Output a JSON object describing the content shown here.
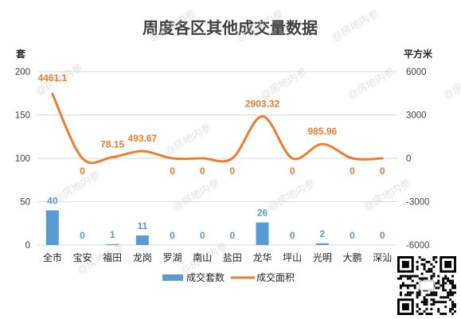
{
  "chart_data": {
    "type": "bar+line",
    "title": "周度各区其他成交量数据",
    "left_axis_label": "套",
    "right_axis_label": "平方米",
    "categories": [
      "全市",
      "宝安",
      "福田",
      "龙岗",
      "罗湖",
      "南山",
      "盐田",
      "龙华",
      "坪山",
      "光明",
      "大鹏",
      "深汕"
    ],
    "series": [
      {
        "name": "成交套数",
        "type": "bar",
        "axis": "left",
        "values": [
          40,
          0,
          1,
          11,
          0,
          0,
          0,
          26,
          0,
          2,
          0,
          0
        ]
      },
      {
        "name": "成交面积",
        "type": "line",
        "axis": "right",
        "values": [
          4461.1,
          0,
          78.15,
          493.67,
          0,
          0,
          0,
          2903.32,
          0,
          985.96,
          0,
          0
        ],
        "labels": [
          "4461.1",
          "0",
          "78.15",
          "493.67",
          "0",
          "0",
          "0",
          "2903.32",
          "0",
          "985.96",
          "0",
          "0"
        ]
      }
    ],
    "left_ylim": [
      0,
      200
    ],
    "left_ticks": [
      0,
      50,
      100,
      150,
      200
    ],
    "right_ylim": [
      -6000,
      6000
    ],
    "right_ticks": [
      -6000,
      -3000,
      0,
      3000,
      6000
    ],
    "legend_position": "bottom",
    "colors": {
      "bar": "#5b9bd5",
      "line": "#ed7d31",
      "bar_label": "#5b9bd5",
      "line_label": "#ed7d31"
    },
    "watermark": "房地内参"
  }
}
